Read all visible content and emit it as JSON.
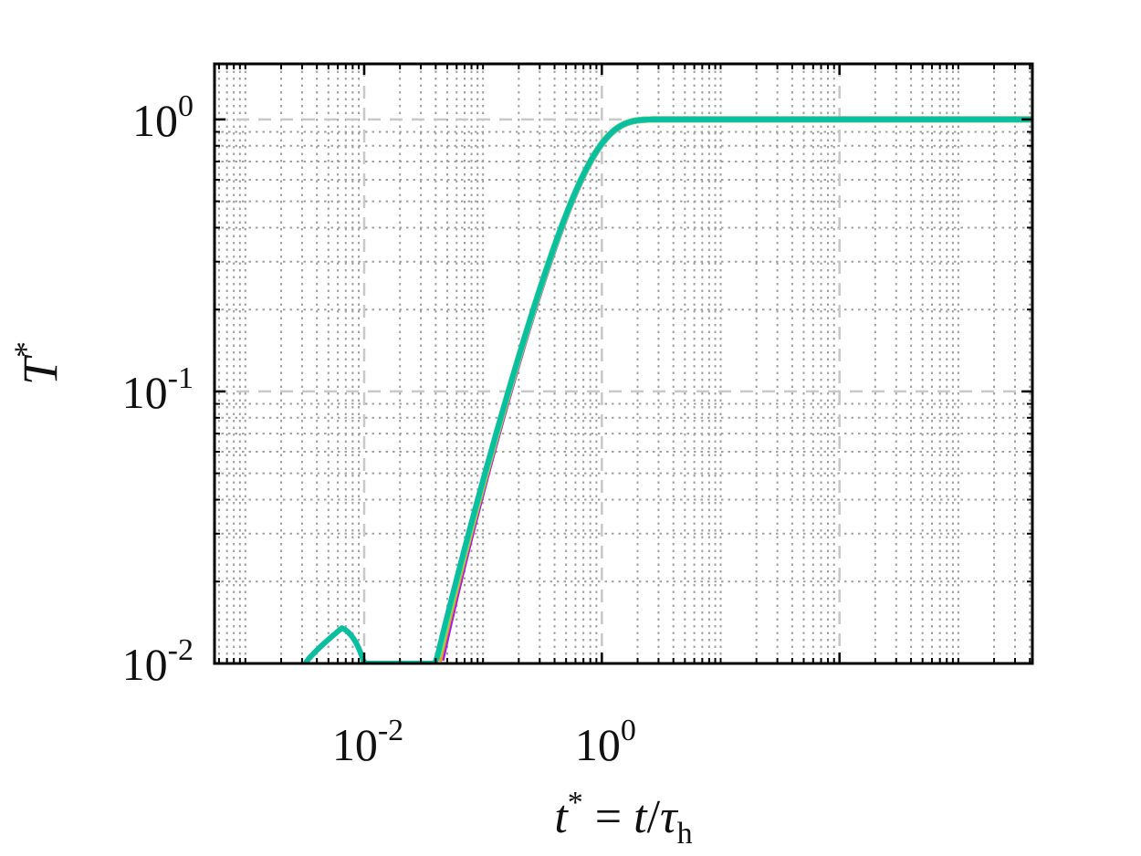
{
  "chart_data": {
    "type": "line",
    "title": "",
    "xlabel": "t* = t/τh",
    "xlabel_parts": {
      "var": "t",
      "sup": "*",
      "eq": " = ",
      "num": "t",
      "den": "τ",
      "sub": "h"
    },
    "ylabel": "T*",
    "ylabel_parts": {
      "var": "T",
      "sup": "*"
    },
    "x_scale": "log",
    "y_scale": "log",
    "xlim": [
      0.00055,
      4200
    ],
    "ylim": [
      0.01,
      1.6
    ],
    "x_ticks": [
      {
        "value": 0.01,
        "base": "10",
        "exp": "-2"
      },
      {
        "value": 1,
        "base": "10",
        "exp": "0"
      }
    ],
    "y_ticks": [
      {
        "value": 0.01,
        "base": "10",
        "exp": "-2"
      },
      {
        "value": 0.1,
        "base": "10",
        "exp": "-1"
      },
      {
        "value": 1,
        "base": "10",
        "exp": "0"
      }
    ],
    "grid": true,
    "legend": "none",
    "series": [
      {
        "color": "#e0004d",
        "lag": 0.0113,
        "r": 0.7,
        "width": 3
      },
      {
        "color": "#f5e200",
        "lag": 0.0108,
        "r": 0.7,
        "width": 3
      },
      {
        "color": "#3a8ee0",
        "lag": 0.0107,
        "r": 0.7,
        "width": 3
      },
      {
        "color": "#a020f0",
        "lag": 0.0112,
        "r": 0.7,
        "width": 7
      },
      {
        "color": "#ff9a00",
        "lag": 0.0093,
        "r": 0.7,
        "width": 7
      },
      {
        "color": "#5de88a",
        "lag": 0.008,
        "r": 0.7,
        "width": 7
      },
      {
        "color": "#0abfa0",
        "lag": 0.0073,
        "r": 0.7,
        "width": 6,
        "early_start": 0.0032,
        "early_anchor": [
          0.0065,
          0.0135
        ]
      }
    ]
  }
}
